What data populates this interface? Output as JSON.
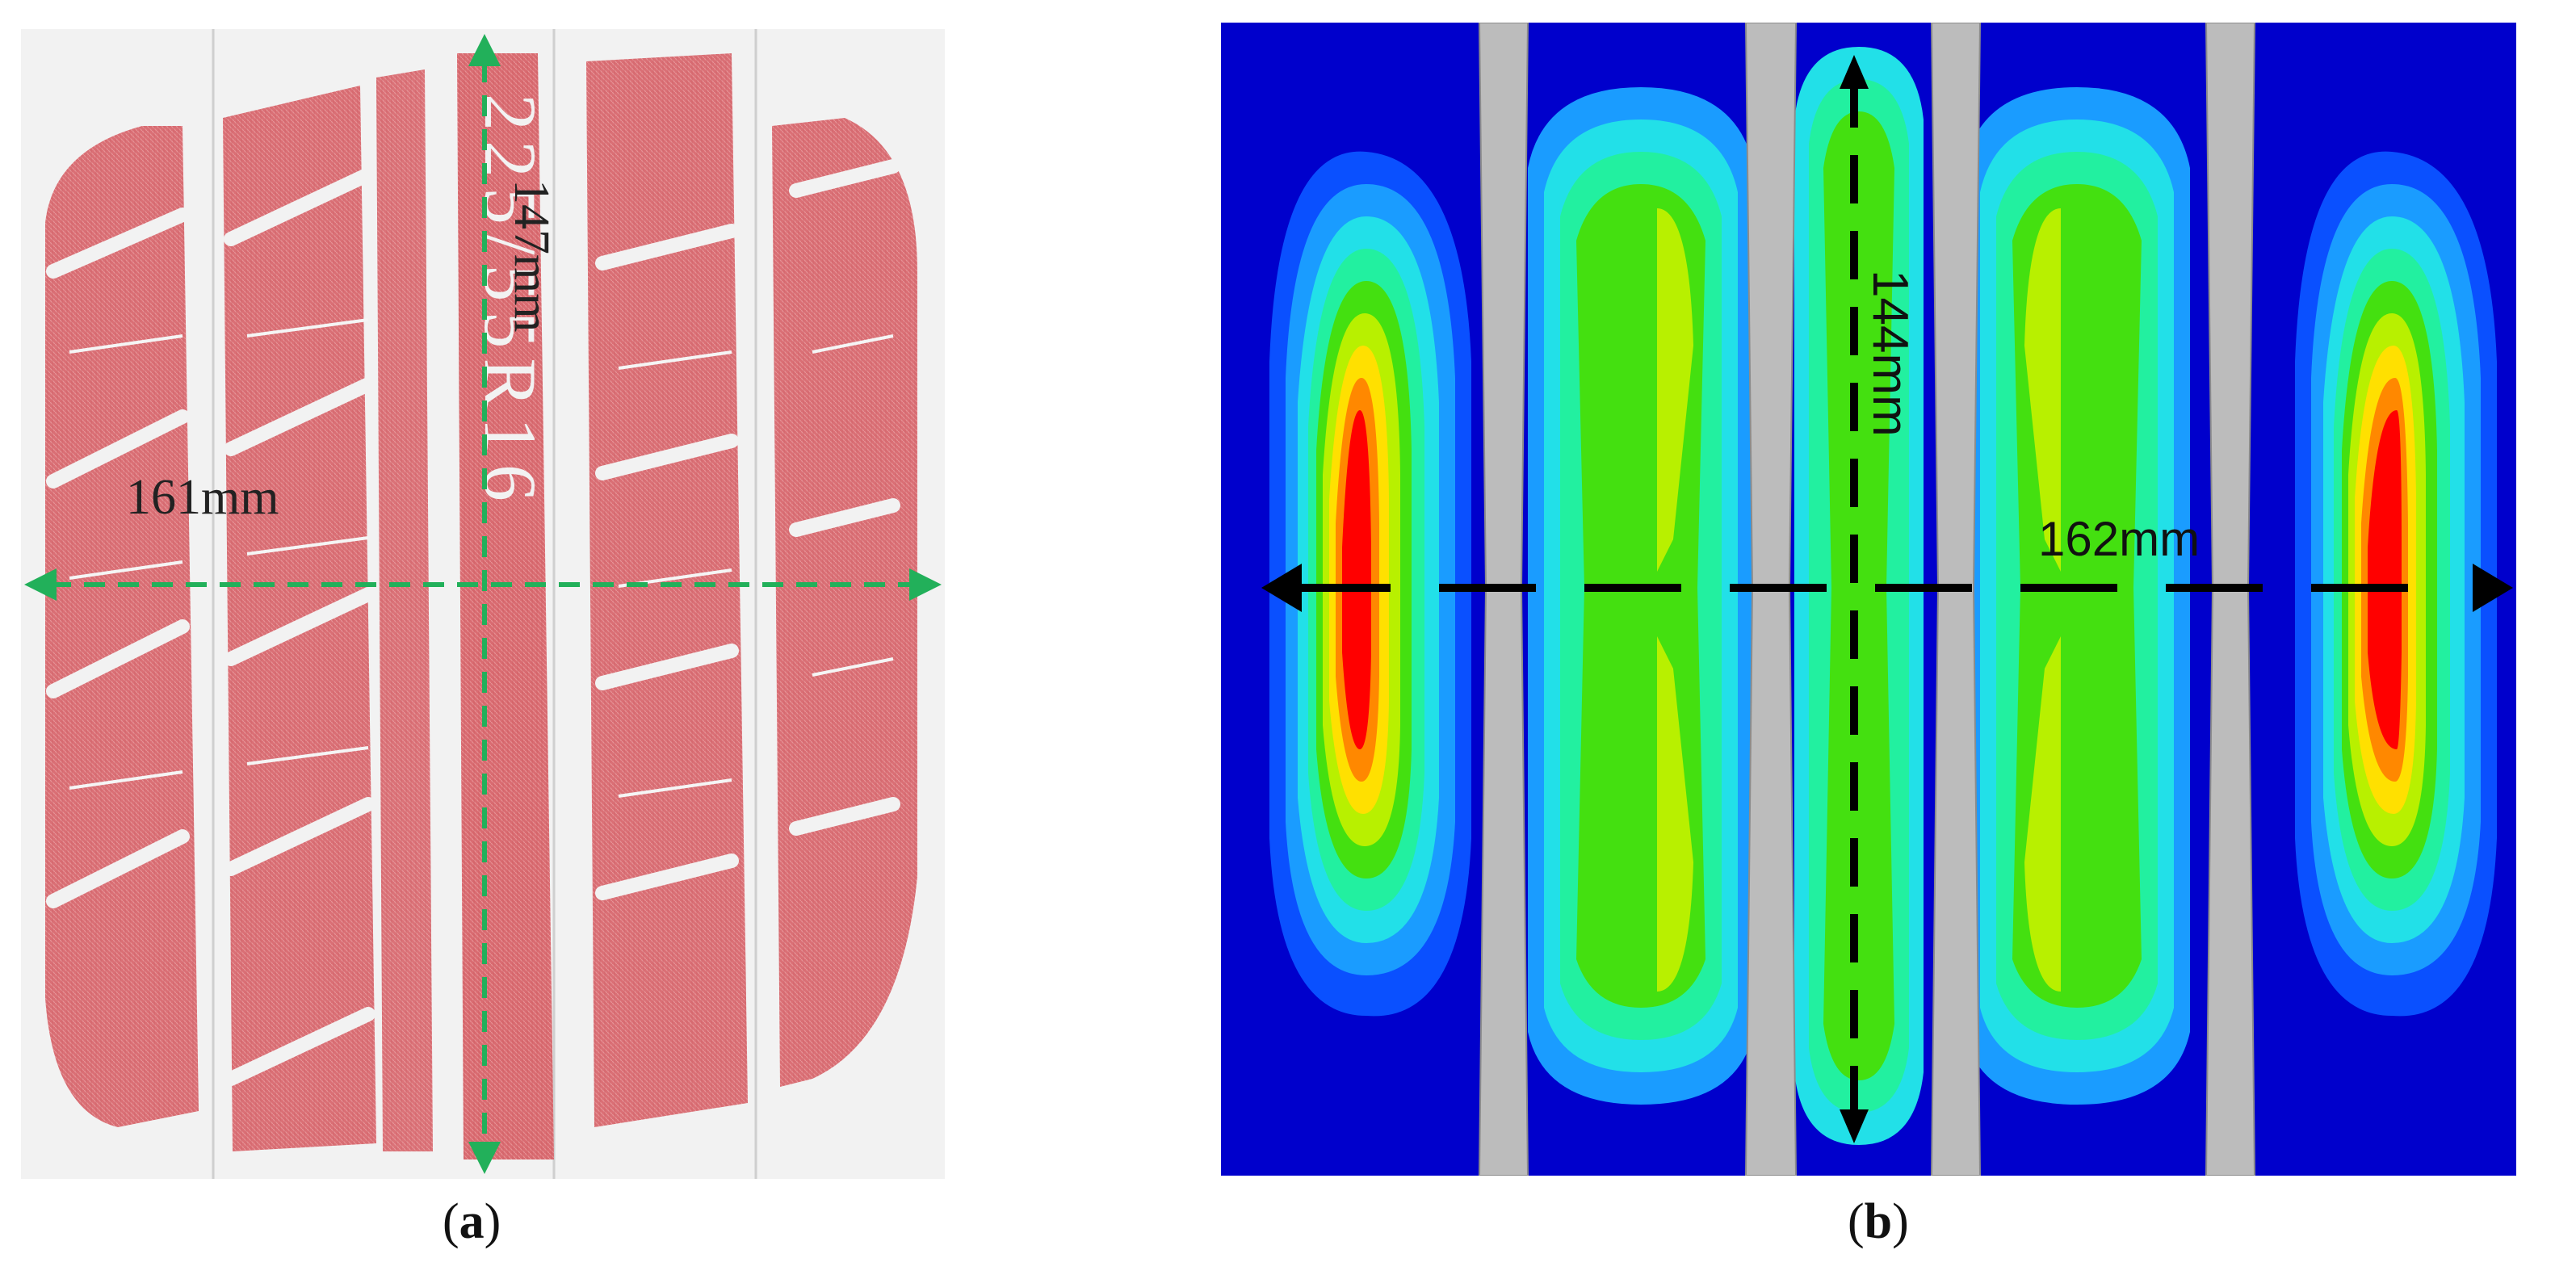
{
  "panel_a": {
    "horizontal_measurement": "161mm",
    "vertical_measurement": "147mm",
    "tread_text": "225/55R16",
    "caption_letter": "a"
  },
  "panel_b": {
    "horizontal_measurement": "162mm",
    "vertical_measurement": "144mm",
    "caption_letter": "b"
  },
  "colors": {
    "paper": "#f2f2f2",
    "ink": "#d9656a",
    "measure_green": "#22b05a",
    "background_blue": "#0000cc",
    "groove_gray": "#bcbcbc",
    "contour_levels": [
      "#0a50ff",
      "#1a9cff",
      "#22e0e8",
      "#22f0a0",
      "#44e010",
      "#b8f000",
      "#ffe000",
      "#ff8800",
      "#ff0000"
    ]
  }
}
